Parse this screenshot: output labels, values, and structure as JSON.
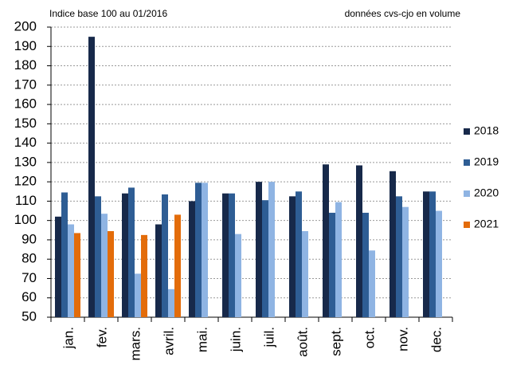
{
  "chart_data": {
    "type": "bar",
    "subtitle": "Indice base 100 au 01/2016",
    "annotation": "données cvs-cjo en volume",
    "categories": [
      "jan.",
      "fev.",
      "mars.",
      "avril.",
      "mai.",
      "juin.",
      "juil.",
      "août.",
      "sept.",
      "oct.",
      "nov.",
      "dec."
    ],
    "series": [
      {
        "name": "2018",
        "color": "#17294a",
        "values": [
          102,
          195,
          114,
          98,
          110,
          114,
          120,
          112.5,
          129,
          128.5,
          125.5,
          115
        ]
      },
      {
        "name": "2019",
        "color": "#2e5d94",
        "values": [
          114.5,
          112.5,
          117,
          113.5,
          119.5,
          114,
          110.5,
          115,
          104,
          104,
          112.5,
          115
        ]
      },
      {
        "name": "2020",
        "color": "#8fb4e3",
        "values": [
          98,
          103.5,
          72.5,
          64.5,
          119.5,
          93,
          120,
          94.5,
          109.5,
          84.5,
          107,
          105
        ]
      },
      {
        "name": "2021",
        "color": "#e36c0a",
        "values": [
          93.5,
          94.5,
          92.5,
          103,
          null,
          null,
          null,
          null,
          null,
          null,
          null,
          null
        ]
      }
    ],
    "ylim": [
      50,
      200
    ],
    "yticks": [
      50,
      60,
      70,
      80,
      90,
      100,
      110,
      120,
      130,
      140,
      150,
      160,
      170,
      180,
      190,
      200
    ],
    "grid": true,
    "legend": "right"
  }
}
